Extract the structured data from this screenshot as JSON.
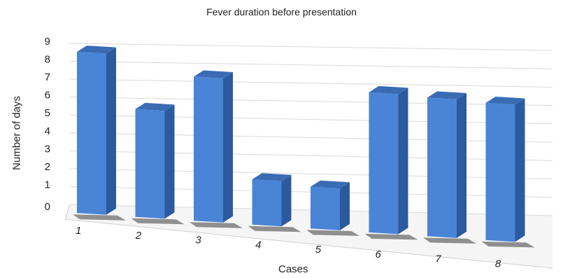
{
  "chart_data": {
    "type": "bar",
    "title": "Fever duration before presentation",
    "xlabel": "Cases",
    "ylabel": "Number of days",
    "categories": [
      "1",
      "2",
      "3",
      "4",
      "5",
      "6",
      "7",
      "8"
    ],
    "values": [
      9,
      6,
      8,
      2.5,
      2.3,
      7.7,
      7.6,
      7.5
    ],
    "ylim": [
      0,
      9
    ],
    "yticks": [
      "0",
      "1",
      "2",
      "3",
      "4",
      "5",
      "6",
      "7",
      "8",
      "9"
    ],
    "grid": true,
    "legend": "none",
    "bar_color": "#4a84d6",
    "bar_side_color": "#2b5a9e",
    "bar_top_color": "#3a6cb5"
  }
}
